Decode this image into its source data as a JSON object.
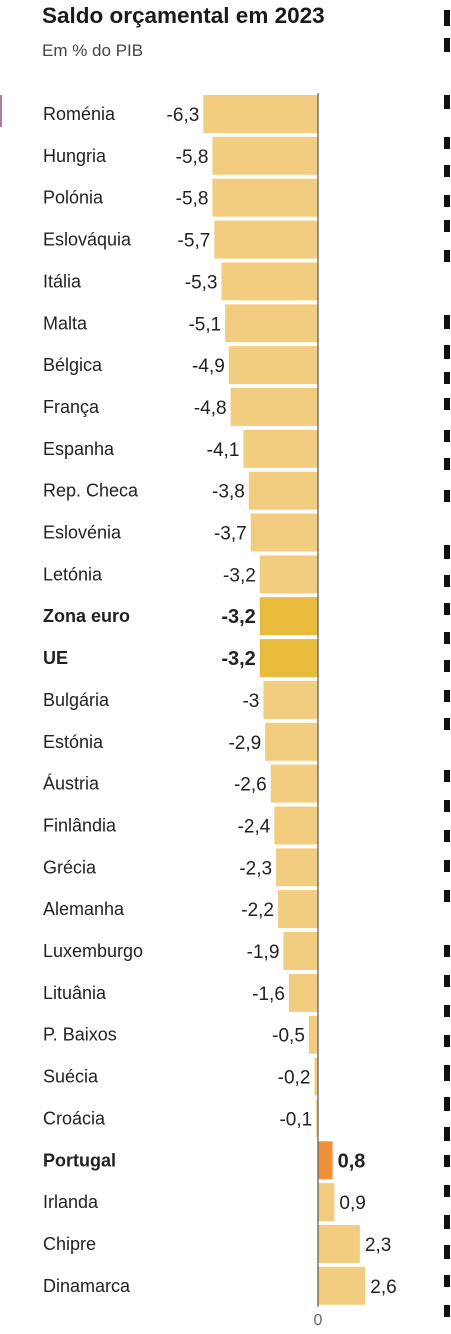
{
  "header": {
    "title": "Saldo orçamental em 2023",
    "subtitle": "Em % do PIB"
  },
  "colors": {
    "bar_default": "#f2cd80",
    "bar_highlight_aggregate": "#e8bb3c",
    "bar_portugal": "#f0913a",
    "axis": "#555555",
    "text": "#222222"
  },
  "chart_data": {
    "type": "bar",
    "orientation": "horizontal",
    "title": "Saldo orçamental em 2023",
    "subtitle": "Em % do PIB",
    "zero_label": "0",
    "xlim": [
      -6.3,
      2.6
    ],
    "grid": false,
    "legend": "none",
    "categories": [
      "Roménia",
      "Hungria",
      "Polónia",
      "Eslováquia",
      "Itália",
      "Malta",
      "Bélgica",
      "França",
      "Espanha",
      "Rep. Checa",
      "Eslovénia",
      "Letónia",
      "Zona euro",
      "UE",
      "Bulgária",
      "Estónia",
      "Áustria",
      "Finlândia",
      "Grécia",
      "Alemanha",
      "Luxemburgo",
      "Lituânia",
      "P. Baixos",
      "Suécia",
      "Croácia",
      "Portugal",
      "Irlanda",
      "Chipre",
      "Dinamarca"
    ],
    "values": [
      -6.3,
      -5.8,
      -5.8,
      -5.7,
      -5.3,
      -5.1,
      -4.9,
      -4.8,
      -4.1,
      -3.8,
      -3.7,
      -3.2,
      -3.2,
      -3.2,
      -3,
      -2.9,
      -2.6,
      -2.4,
      -2.3,
      -2.2,
      -1.9,
      -1.6,
      -0.5,
      -0.2,
      -0.1,
      0.8,
      0.9,
      2.3,
      2.6
    ],
    "value_labels": [
      "-6,3",
      "-5,8",
      "-5,8",
      "-5,7",
      "-5,3",
      "-5,1",
      "-4,9",
      "-4,8",
      "-4,1",
      "-3,8",
      "-3,7",
      "-3,2",
      "-3,2",
      "-3,2",
      "-3",
      "-2,9",
      "-2,6",
      "-2,4",
      "-2,3",
      "-2,2",
      "-1,9",
      "-1,6",
      "-0,5",
      "-0,2",
      "-0,1",
      "0,8",
      "0,9",
      "2,3",
      "2,6"
    ],
    "highlight": {
      "Zona euro": "aggregate",
      "UE": "aggregate",
      "Portugal": "portugal"
    }
  }
}
